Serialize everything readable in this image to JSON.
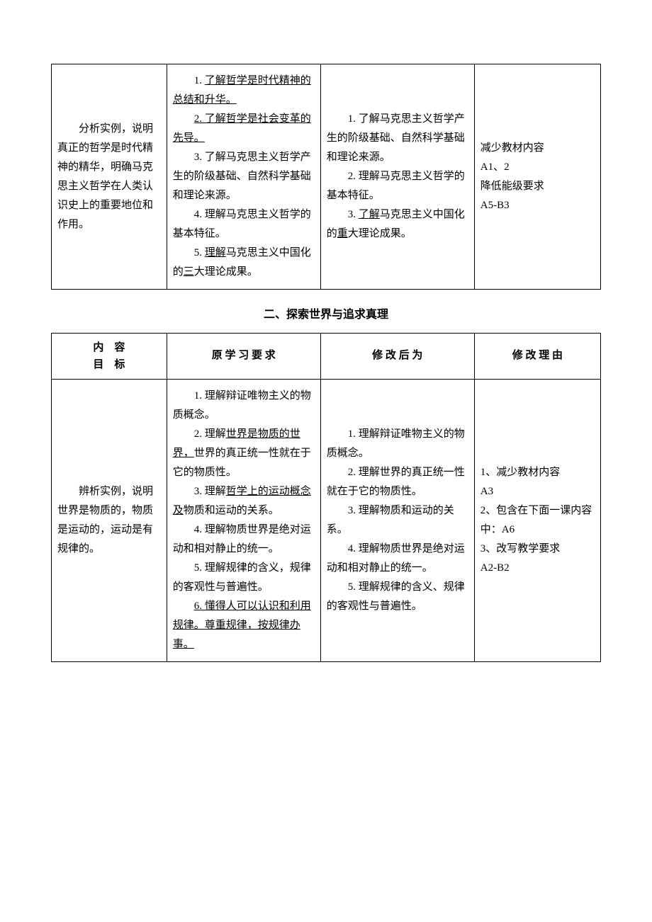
{
  "table1": {
    "row": {
      "goal": "　　分析实例，说明真正的哲学是时代精神的精华，明确马克思主义哲学在人类认识史上的重要地位和作用。",
      "orig_1_pre": "　　1. ",
      "orig_1_u": "了解哲学是时代精神的总结和升华。",
      "orig_2_pre": "　　",
      "orig_2_u": "2. 了解哲学是社会变革的先导。",
      "orig_3": "　　3. 了解马克思主义哲学产生的阶级基础、自然科学基础和理论来源。",
      "orig_4": "　　4. 理解马克思主义哲学的基本特征。",
      "orig_5_pre": "　　5. ",
      "orig_5_u1": "理解",
      "orig_5_mid": "马克思主义中国化的",
      "orig_5_u2": "三",
      "orig_5_post": "大理论成果。",
      "mod_1": "　　1. 了解马克思主义哲学产生的阶级基础、自然科学基础和理论来源。",
      "mod_2": "　　2. 理解马克思主义哲学的基本特征。",
      "mod_3_pre": "　　3. ",
      "mod_3_u1": "了解",
      "mod_3_mid": "马克思主义中国化的",
      "mod_3_u2": "重",
      "mod_3_post": "大理论成果。",
      "reason_1": "减少教材内容",
      "reason_2": "A1、2",
      "reason_3": "降低能级要求",
      "reason_4": "A5-B3"
    }
  },
  "section2_title": "二、探索世界与追求真理",
  "table2": {
    "headers": {
      "h1a": "内　容",
      "h1b": "目　标",
      "h2": "原 学 习 要 求",
      "h3": "修 改 后 为",
      "h4": "修 改 理 由"
    },
    "row": {
      "goal": "　　辨析实例，说明世界是物质的，物质是运动的，运动是有规律的。",
      "orig_1": "　　1. 理解辩证唯物主义的物质概念。",
      "orig_2_pre": "　　2. 理解",
      "orig_2_u": "世界是物质的世界，",
      "orig_2_post": "世界的真正统一性就在于它的物质性。",
      "orig_3_pre": "　　3. 理解",
      "orig_3_u": "哲学上的运动概念及",
      "orig_3_post": "物质和运动的关系。",
      "orig_4": "　　4. 理解物质世界是绝对运动和相对静止的统一。",
      "orig_5": "　　5. 理解规律的含义，规律的客观性与普遍性。",
      "orig_6_pre": "　　",
      "orig_6_u": "6. 懂得人可以认识和利用规律。尊重规律，按规律办事。",
      "mod_1": "　　1. 理解辩证唯物主义的物质概念。",
      "mod_2": "　　2. 理解世界的真正统一性就在于它的物质性。",
      "mod_3": "　　3. 理解物质和运动的关系。",
      "mod_4": "　　4. 理解物质世界是绝对运动和相对静止的统一。",
      "mod_5": "　　5. 理解规律的含义、规律的客观性与普遍性。",
      "reason_1": "1、减少教材内容",
      "reason_2": "A3",
      "reason_3": "2、包含在下面一课内容中：A6",
      "reason_4": "3、改写教学要求",
      "reason_5": "A2-B2"
    }
  }
}
